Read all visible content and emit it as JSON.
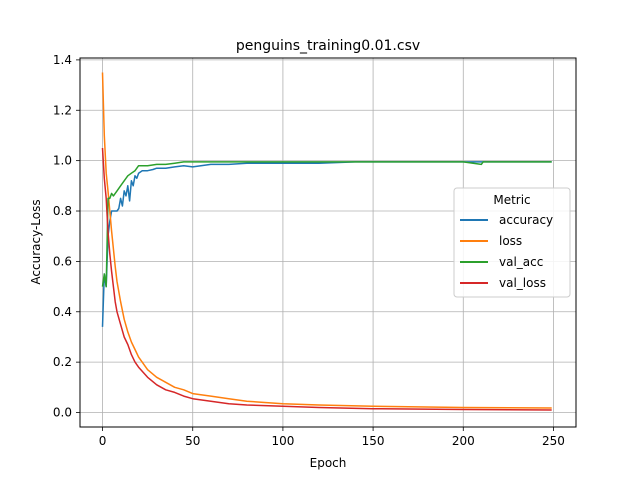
{
  "chart_data": {
    "type": "line",
    "title": "penguins_training0.01.csv",
    "xlabel": "Epoch",
    "ylabel": "Accuracy-Loss",
    "xlim": [
      -12.5,
      262.5
    ],
    "ylim": [
      -0.0575,
      1.4075
    ],
    "xticks": [
      0,
      50,
      100,
      150,
      200,
      250
    ],
    "yticks": [
      0.0,
      0.2,
      0.4,
      0.6,
      0.8,
      1.0,
      1.2,
      1.4
    ],
    "grid": true,
    "legend": {
      "title": "Metric",
      "placement": "center-right"
    },
    "series": [
      {
        "name": "accuracy",
        "color": "#1f77b4",
        "x": [
          0,
          1,
          2,
          3,
          4,
          5,
          6,
          7,
          8,
          9,
          10,
          11,
          12,
          13,
          14,
          15,
          16,
          17,
          18,
          19,
          20,
          22,
          25,
          28,
          30,
          35,
          40,
          45,
          50,
          60,
          70,
          80,
          90,
          100,
          120,
          140,
          160,
          180,
          200,
          220,
          249
        ],
        "y": [
          0.34,
          0.55,
          0.5,
          0.7,
          0.76,
          0.8,
          0.8,
          0.8,
          0.8,
          0.81,
          0.85,
          0.82,
          0.88,
          0.86,
          0.9,
          0.84,
          0.92,
          0.9,
          0.94,
          0.93,
          0.95,
          0.96,
          0.96,
          0.965,
          0.97,
          0.97,
          0.975,
          0.98,
          0.975,
          0.985,
          0.985,
          0.99,
          0.99,
          0.99,
          0.99,
          0.995,
          0.995,
          0.995,
          0.995,
          0.995,
          0.995
        ]
      },
      {
        "name": "loss",
        "color": "#ff7f0e",
        "x": [
          0,
          1,
          2,
          3,
          4,
          5,
          6,
          7,
          8,
          10,
          12,
          14,
          16,
          18,
          20,
          25,
          30,
          35,
          40,
          45,
          50,
          60,
          70,
          80,
          100,
          120,
          150,
          200,
          249
        ],
        "y": [
          1.35,
          1.1,
          0.95,
          0.88,
          0.8,
          0.72,
          0.65,
          0.58,
          0.52,
          0.44,
          0.37,
          0.32,
          0.28,
          0.25,
          0.22,
          0.17,
          0.14,
          0.12,
          0.1,
          0.09,
          0.075,
          0.065,
          0.055,
          0.045,
          0.035,
          0.03,
          0.025,
          0.02,
          0.018
        ]
      },
      {
        "name": "val_acc",
        "color": "#2ca02c",
        "x": [
          0,
          1,
          2,
          3,
          4,
          5,
          6,
          8,
          10,
          12,
          14,
          16,
          18,
          20,
          25,
          30,
          35,
          40,
          45,
          50,
          60,
          80,
          100,
          150,
          200,
          210,
          211,
          249
        ],
        "y": [
          0.5,
          0.55,
          0.5,
          0.85,
          0.85,
          0.87,
          0.86,
          0.88,
          0.9,
          0.92,
          0.94,
          0.95,
          0.96,
          0.98,
          0.98,
          0.985,
          0.985,
          0.99,
          0.995,
          0.995,
          0.995,
          0.995,
          0.995,
          0.995,
          0.995,
          0.985,
          0.995,
          0.995
        ]
      },
      {
        "name": "val_loss",
        "color": "#d62728",
        "x": [
          0,
          1,
          2,
          3,
          4,
          5,
          6,
          7,
          8,
          10,
          12,
          14,
          16,
          18,
          20,
          25,
          30,
          35,
          40,
          45,
          50,
          60,
          70,
          80,
          100,
          120,
          150,
          200,
          249
        ],
        "y": [
          1.05,
          0.93,
          0.85,
          0.72,
          0.63,
          0.56,
          0.5,
          0.44,
          0.4,
          0.35,
          0.3,
          0.27,
          0.23,
          0.2,
          0.18,
          0.14,
          0.11,
          0.09,
          0.08,
          0.065,
          0.055,
          0.045,
          0.035,
          0.03,
          0.025,
          0.02,
          0.015,
          0.012,
          0.01
        ]
      }
    ]
  }
}
